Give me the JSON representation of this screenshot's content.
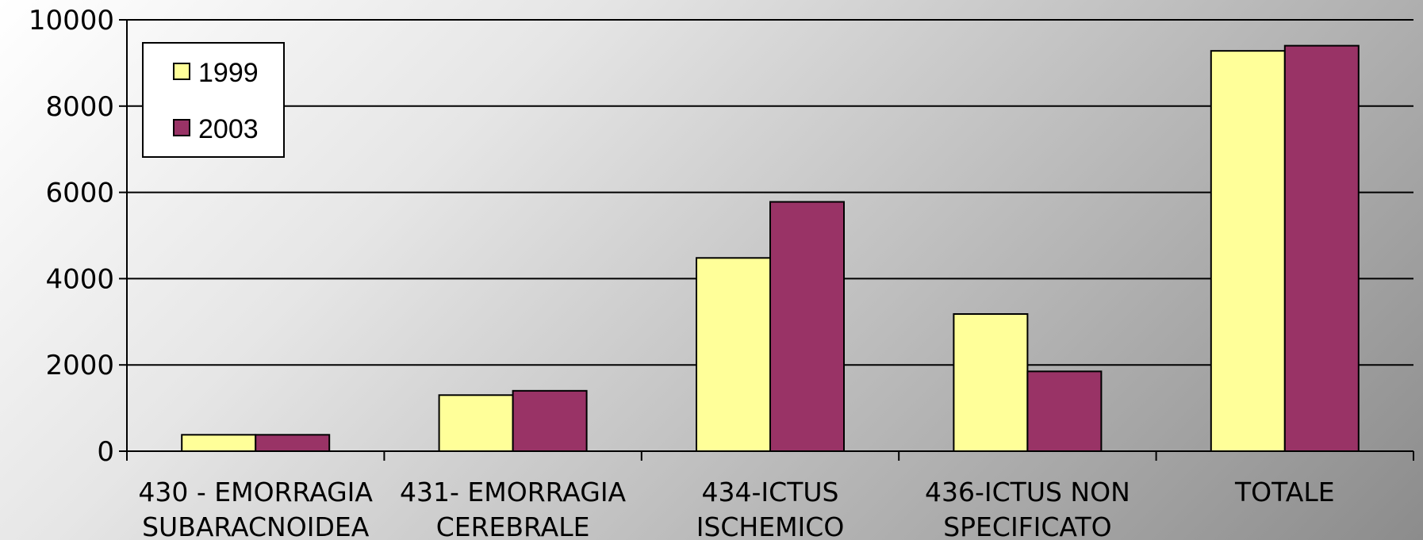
{
  "chart_data": {
    "type": "bar",
    "categories": [
      [
        "430 - EMORRAGIA",
        "SUBARACNOIDEA"
      ],
      [
        "431- EMORRAGIA",
        "CEREBRALE"
      ],
      [
        "434-ICTUS",
        "ISCHEMICO"
      ],
      [
        "436-ICTUS NON",
        "SPECIFICATO"
      ],
      [
        "TOTALE"
      ]
    ],
    "series": [
      {
        "name": "1999",
        "color": "#ffff99",
        "values": [
          380,
          1300,
          4480,
          3180,
          9280
        ]
      },
      {
        "name": "2003",
        "color": "#993366",
        "values": [
          380,
          1400,
          5780,
          1850,
          9400
        ]
      }
    ],
    "ylim": [
      0,
      10000
    ],
    "yticks": [
      0,
      2000,
      4000,
      6000,
      8000,
      10000
    ],
    "grid": true,
    "legend_position": "top-left"
  }
}
